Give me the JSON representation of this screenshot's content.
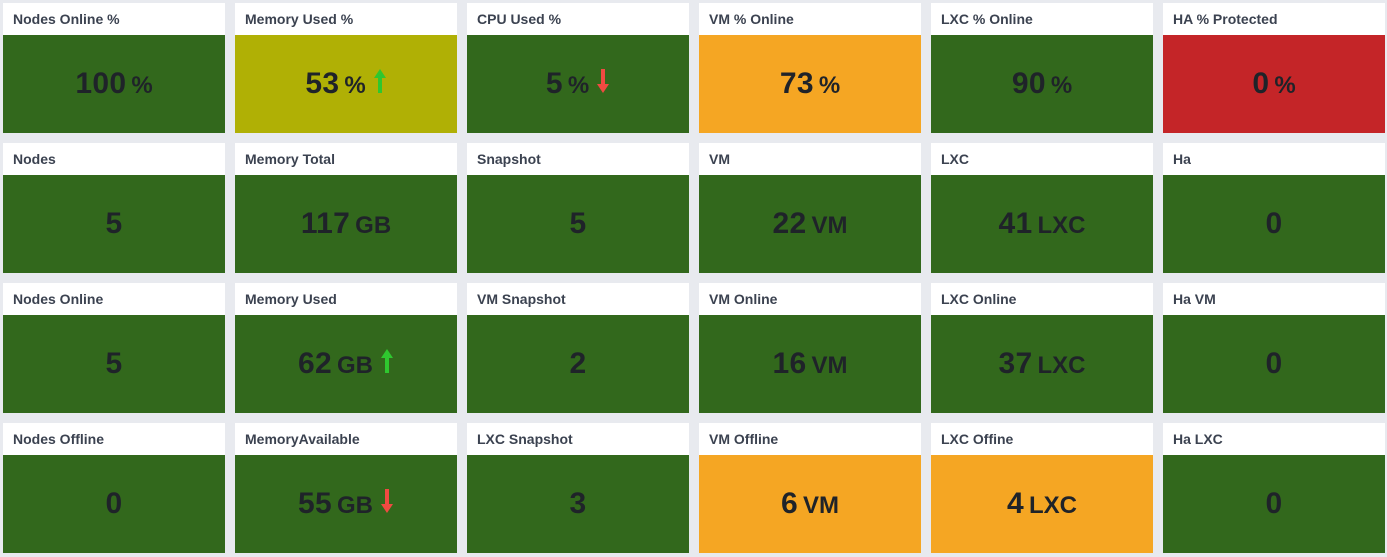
{
  "colors": {
    "green": "#32681c",
    "olive": "#b0b005",
    "orange": "#f5a623",
    "red": "#c42528",
    "arrow_up": "#2fc72f",
    "arrow_down": "#f04a41"
  },
  "tiles": [
    {
      "title": "Nodes Online %",
      "value": "100",
      "unit": "%",
      "color": "green"
    },
    {
      "title": "Memory Used %",
      "value": "53",
      "unit": "%",
      "color": "olive",
      "trend": "up"
    },
    {
      "title": "CPU Used %",
      "value": "5",
      "unit": "%",
      "color": "green",
      "trend": "down"
    },
    {
      "title": "VM % Online",
      "value": "73",
      "unit": "%",
      "color": "orange"
    },
    {
      "title": "LXC % Online",
      "value": "90",
      "unit": "%",
      "color": "green"
    },
    {
      "title": "HA % Protected",
      "value": "0",
      "unit": "%",
      "color": "red"
    },
    {
      "title": "Nodes",
      "value": "5",
      "unit": "",
      "color": "green"
    },
    {
      "title": "Memory Total",
      "value": "117",
      "unit": "GB",
      "color": "green"
    },
    {
      "title": "Snapshot",
      "value": "5",
      "unit": "",
      "color": "green"
    },
    {
      "title": "VM",
      "value": "22",
      "unit": "VM",
      "color": "green"
    },
    {
      "title": "LXC",
      "value": "41",
      "unit": "LXC",
      "color": "green"
    },
    {
      "title": "Ha",
      "value": "0",
      "unit": "",
      "color": "green"
    },
    {
      "title": "Nodes Online",
      "value": "5",
      "unit": "",
      "color": "green"
    },
    {
      "title": "Memory Used",
      "value": "62",
      "unit": "GB",
      "color": "green",
      "trend": "up"
    },
    {
      "title": "VM Snapshot",
      "value": "2",
      "unit": "",
      "color": "green"
    },
    {
      "title": "VM Online",
      "value": "16",
      "unit": "VM",
      "color": "green"
    },
    {
      "title": "LXC Online",
      "value": "37",
      "unit": "LXC",
      "color": "green"
    },
    {
      "title": "Ha VM",
      "value": "0",
      "unit": "",
      "color": "green"
    },
    {
      "title": "Nodes Offline",
      "value": "0",
      "unit": "",
      "color": "green"
    },
    {
      "title": "MemoryAvailable",
      "value": "55",
      "unit": "GB",
      "color": "green",
      "trend": "down"
    },
    {
      "title": "LXC Snapshot",
      "value": "3",
      "unit": "",
      "color": "green"
    },
    {
      "title": "VM Offline",
      "value": "6",
      "unit": "VM",
      "color": "orange"
    },
    {
      "title": "LXC Offine",
      "value": "4",
      "unit": "LXC",
      "color": "orange"
    },
    {
      "title": "Ha LXC",
      "value": "0",
      "unit": "",
      "color": "green"
    }
  ]
}
